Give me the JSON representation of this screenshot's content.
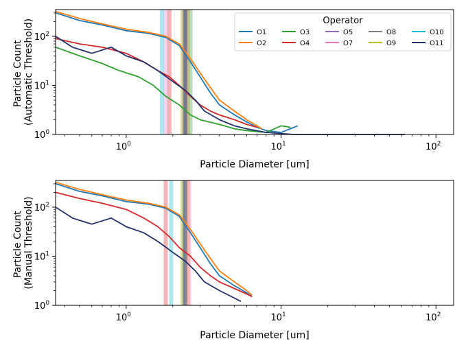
{
  "chart_data": [
    {
      "type": "line",
      "xscale": "log",
      "yscale": "log",
      "xlabel": "Particle Diameter [um]",
      "ylabel": [
        "Particle Count",
        "(Automatic Threshold)"
      ],
      "xlim": [
        0.35,
        130
      ],
      "ylim": [
        1,
        350
      ],
      "x_ticks": [
        {
          "value": 1,
          "base": "10",
          "exp": "0"
        },
        {
          "value": 10,
          "base": "10",
          "exp": "1"
        },
        {
          "value": 100,
          "base": "10",
          "exp": "2"
        }
      ],
      "y_ticks": [
        {
          "value": 1,
          "base": "10",
          "exp": "0"
        },
        {
          "value": 10,
          "base": "10",
          "exp": "1"
        },
        {
          "value": 100,
          "base": "10",
          "exp": "2"
        }
      ],
      "grid": false,
      "legend": {
        "title": "Operator",
        "placement": "top-right",
        "columns": 5
      },
      "series": [
        {
          "name": "O1",
          "color": "#1f77b4",
          "x": [
            0.35,
            0.5,
            0.7,
            1.0,
            1.4,
            1.8,
            2.2,
            2.6,
            3.0,
            3.5,
            4.0,
            5.0,
            6.0,
            7.0,
            8.0,
            10.0,
            12.8
          ],
          "y": [
            300,
            210,
            170,
            130,
            115,
            95,
            65,
            30,
            15,
            7,
            4,
            2.5,
            1.8,
            1.4,
            1.2,
            1.1,
            1.5
          ],
          "median": 2.45
        },
        {
          "name": "O2",
          "color": "#ff7f0e",
          "x": [
            0.35,
            0.5,
            0.7,
            1.0,
            1.4,
            1.8,
            2.2,
            2.6,
            3.0,
            3.5,
            4.0,
            5.0,
            6.0,
            7.0,
            7.5
          ],
          "y": [
            320,
            230,
            180,
            140,
            120,
            100,
            70,
            35,
            18,
            9,
            5,
            3,
            2,
            1.5,
            1.3
          ],
          "median": 2.5
        },
        {
          "name": "O3",
          "color": "#2ca02c",
          "x": [
            0.35,
            0.5,
            0.7,
            0.9,
            1.2,
            1.5,
            1.8,
            2.2,
            2.6,
            3.0,
            4.0,
            5.0,
            6.0,
            8.0,
            10.0,
            11.5
          ],
          "y": [
            60,
            40,
            28,
            20,
            15,
            10,
            6,
            4,
            2.5,
            2,
            1.6,
            1.3,
            1.2,
            1.1,
            1.5,
            1.4
          ],
          "median": 2.6
        },
        {
          "name": "O4",
          "color": "#d62728",
          "x": [
            0.35,
            0.5,
            0.7,
            1.0,
            1.3,
            1.6,
            1.9,
            2.2,
            2.6,
            3.0,
            3.5,
            4.0,
            5.0,
            6.0,
            7.0
          ],
          "y": [
            90,
            70,
            60,
            45,
            30,
            20,
            15,
            10,
            6,
            4,
            3,
            2.5,
            2,
            1.6,
            1.4
          ],
          "median": 1.9
        },
        {
          "name": "O5",
          "color": "#9467bd",
          "x": [],
          "y": [],
          "median": 2.35
        },
        {
          "name": "O7",
          "color": "#e377c2",
          "x": [],
          "y": [],
          "median": 1.8
        },
        {
          "name": "O8",
          "color": "#7f7f7f",
          "x": [],
          "y": [],
          "median": 2.4
        },
        {
          "name": "O9",
          "color": "#bcbd22",
          "x": [],
          "y": [],
          "median": 2.3
        },
        {
          "name": "O10",
          "color": "#17becf",
          "x": [],
          "y": [],
          "median": 1.7
        },
        {
          "name": "O11",
          "color": "#1f2f6b",
          "x": [
            0.35,
            0.45,
            0.6,
            0.8,
            1.0,
            1.3,
            1.6,
            2.0,
            2.4,
            2.8,
            3.2,
            4.0,
            5.0,
            6.0,
            8.0,
            12.0,
            20.0,
            40.0,
            63.0
          ],
          "y": [
            100,
            60,
            45,
            60,
            40,
            30,
            20,
            12,
            8,
            5,
            3,
            2,
            1.5,
            1.3,
            1.1,
            1.0,
            1.0,
            1.0,
            1.0
          ],
          "median": 2.4
        }
      ]
    },
    {
      "type": "line",
      "xscale": "log",
      "yscale": "log",
      "xlabel": "Particle Diameter [um]",
      "ylabel": [
        "Particle Count",
        "(Manual Threshold)"
      ],
      "xlim": [
        0.35,
        130
      ],
      "ylim": [
        1,
        350
      ],
      "x_ticks": [
        {
          "value": 1,
          "base": "10",
          "exp": "0"
        },
        {
          "value": 10,
          "base": "10",
          "exp": "1"
        },
        {
          "value": 100,
          "base": "10",
          "exp": "2"
        }
      ],
      "y_ticks": [
        {
          "value": 1,
          "base": "10",
          "exp": "0"
        },
        {
          "value": 10,
          "base": "10",
          "exp": "1"
        },
        {
          "value": 100,
          "base": "10",
          "exp": "2"
        }
      ],
      "grid": false,
      "series": [
        {
          "name": "O1",
          "color": "#1f77b4",
          "x": [
            0.35,
            0.5,
            0.7,
            1.0,
            1.4,
            1.8,
            2.2,
            2.6,
            3.0,
            3.5,
            4.0,
            5.0,
            6.0,
            6.5
          ],
          "y": [
            300,
            210,
            170,
            130,
            115,
            95,
            65,
            30,
            15,
            7,
            4,
            2.5,
            1.8,
            1.5
          ],
          "median": 2.4
        },
        {
          "name": "O2",
          "color": "#ff7f0e",
          "x": [
            0.35,
            0.5,
            0.7,
            1.0,
            1.4,
            1.8,
            2.2,
            2.6,
            3.0,
            3.5,
            4.0,
            5.0,
            6.0,
            6.5
          ],
          "y": [
            320,
            230,
            180,
            140,
            120,
            100,
            70,
            35,
            18,
            9,
            5,
            3,
            2,
            1.6
          ],
          "median": 2.5
        },
        {
          "name": "O4",
          "color": "#d62728",
          "x": [
            0.35,
            0.5,
            0.7,
            1.0,
            1.3,
            1.6,
            1.9,
            2.2,
            2.6,
            3.0,
            3.5,
            4.0,
            5.0,
            6.0,
            6.5
          ],
          "y": [
            200,
            150,
            120,
            90,
            60,
            40,
            25,
            15,
            10,
            6,
            4,
            3,
            2.2,
            1.7,
            1.5
          ],
          "median": 1.8
        },
        {
          "name": "O7",
          "color": "#e377c2",
          "x": [],
          "y": [],
          "median": 2.55
        },
        {
          "name": "O8",
          "color": "#7f7f7f",
          "x": [],
          "y": [],
          "median": 2.35
        },
        {
          "name": "O9",
          "color": "#bcbd22",
          "x": [],
          "y": [],
          "median": 2.3
        },
        {
          "name": "O10",
          "color": "#17becf",
          "x": [],
          "y": [],
          "median": 1.95
        },
        {
          "name": "O11",
          "color": "#1f2f6b",
          "x": [
            0.35,
            0.45,
            0.6,
            0.8,
            1.0,
            1.3,
            1.6,
            2.0,
            2.4,
            2.8,
            3.2,
            4.0,
            5.0,
            5.5
          ],
          "y": [
            100,
            60,
            45,
            60,
            40,
            30,
            20,
            12,
            8,
            5,
            3,
            2,
            1.4,
            1.2
          ],
          "median": 2.4
        }
      ]
    }
  ]
}
